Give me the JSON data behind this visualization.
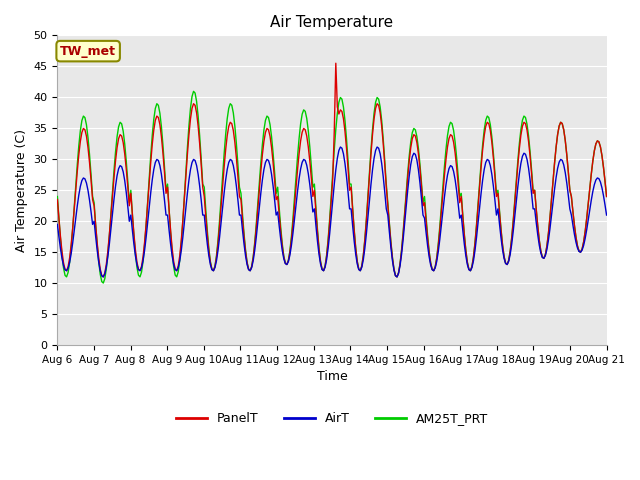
{
  "title": "Air Temperature",
  "ylabel": "Air Temperature (C)",
  "xlabel": "Time",
  "ylim": [
    0,
    50
  ],
  "yticks": [
    0,
    5,
    10,
    15,
    20,
    25,
    30,
    35,
    40,
    45,
    50
  ],
  "xtick_labels": [
    "Aug 6",
    "Aug 7",
    "Aug 8",
    "Aug 9",
    "Aug 10",
    "Aug 11",
    "Aug 12",
    "Aug 13",
    "Aug 14",
    "Aug 15",
    "Aug 16",
    "Aug 17",
    "Aug 18",
    "Aug 19",
    "Aug 20",
    "Aug 21"
  ],
  "station_label": "TW_met",
  "station_label_color": "#aa0000",
  "station_box_facecolor": "#ffffcc",
  "station_box_edgecolor": "#888800",
  "legend_labels": [
    "PanelT",
    "AirT",
    "AM25T_PRT"
  ],
  "line_colors": [
    "#dd0000",
    "#0000cc",
    "#00cc00"
  ],
  "plot_bg_color": "#e8e8e8",
  "fig_bg_color": "#ffffff",
  "grid_color": "#ffffff",
  "figsize": [
    6.4,
    4.8
  ],
  "dpi": 100,
  "air_min": [
    12,
    11,
    12,
    12,
    12,
    12,
    13,
    12,
    12,
    11,
    12,
    12,
    13,
    14,
    15
  ],
  "air_max": [
    27,
    29,
    30,
    30,
    30,
    30,
    30,
    32,
    32,
    31,
    29,
    30,
    31,
    30,
    27
  ],
  "green_min": [
    11,
    10,
    11,
    11,
    12,
    12,
    13,
    12,
    12,
    11,
    12,
    12,
    13,
    14,
    15
  ],
  "green_max": [
    37,
    36,
    39,
    41,
    39,
    37,
    38,
    40,
    40,
    35,
    36,
    37,
    37,
    36,
    33
  ],
  "red_min": [
    12,
    11,
    12,
    12,
    12,
    12,
    13,
    12,
    12,
    11,
    12,
    12,
    13,
    14,
    15
  ],
  "red_max": [
    35,
    34,
    37,
    39,
    36,
    35,
    35,
    38,
    39,
    34,
    34,
    36,
    36,
    36,
    33
  ],
  "spike_day": 7,
  "spike_hour": 14,
  "spike_value": 45.5
}
